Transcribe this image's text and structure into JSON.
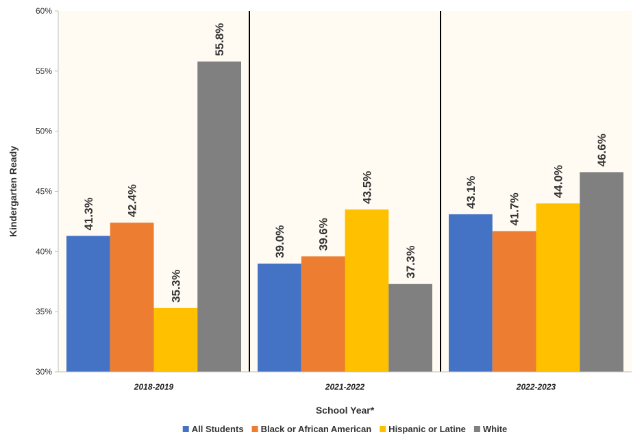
{
  "chart_data": {
    "type": "bar",
    "title": "",
    "xlabel": "School Year*",
    "ylabel": "Kindergarten Ready",
    "ylim": [
      30,
      60
    ],
    "yticks": [
      "30%",
      "35%",
      "40%",
      "45%",
      "50%",
      "55%",
      "60%"
    ],
    "ytick_values": [
      30,
      35,
      40,
      45,
      50,
      55,
      60
    ],
    "categories": [
      "2018-2019",
      "2021-2022",
      "2022-2023"
    ],
    "series": [
      {
        "name": "All Students",
        "color": "#4472C4",
        "values": [
          41.3,
          39.0,
          43.1
        ],
        "labels": [
          "41.3%",
          "39.0%",
          "43.1%"
        ]
      },
      {
        "name": "Black or African American",
        "color": "#ED7D31",
        "values": [
          42.4,
          39.6,
          41.7
        ],
        "labels": [
          "42.4%",
          "39.6%",
          "41.7%"
        ]
      },
      {
        "name": "Hispanic or Latine",
        "color": "#FFC000",
        "values": [
          35.3,
          43.5,
          44.0
        ],
        "labels": [
          "35.3%",
          "43.5%",
          "44.0%"
        ]
      },
      {
        "name": "White",
        "color": "#808080",
        "values": [
          55.8,
          37.3,
          46.6
        ],
        "labels": [
          "55.8%",
          "37.3%",
          "46.6%"
        ]
      }
    ],
    "plot_background": "#FFFBF2",
    "grid": false,
    "legend_position": "bottom"
  }
}
